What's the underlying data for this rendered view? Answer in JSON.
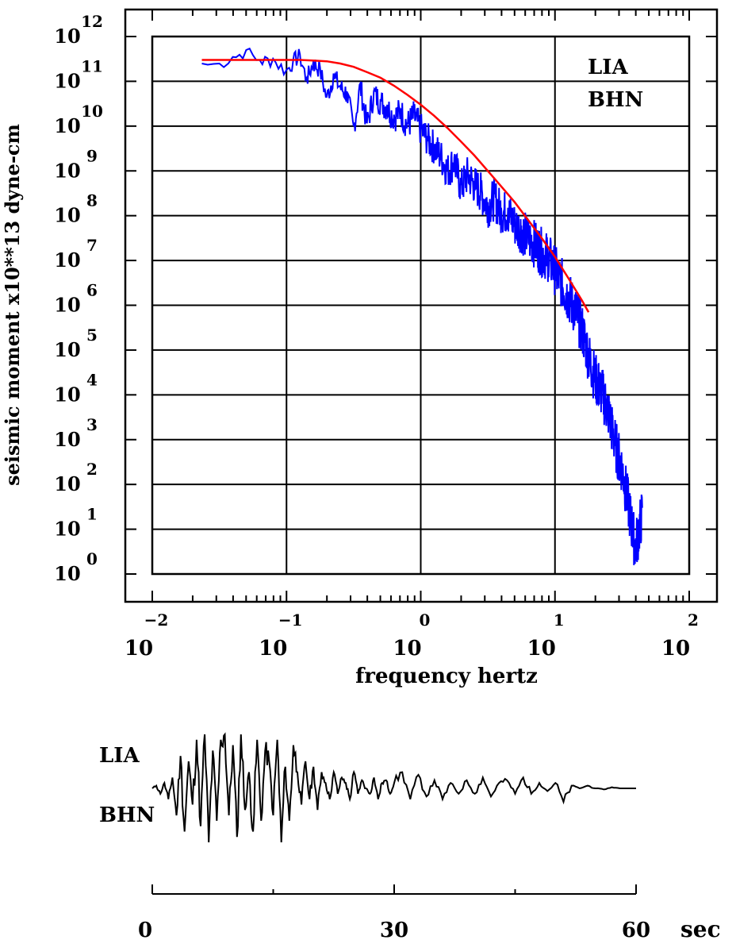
{
  "chart_data": [
    {
      "type": "line",
      "scale": {
        "x": "log",
        "y": "log"
      },
      "xlim": [
        0.01,
        100
      ],
      "ylim": [
        1,
        1000000000000
      ],
      "xlabel": "frequency  hertz",
      "ylabel": "seismic moment x10**13 dyne-cm",
      "x_ticks": [
        {
          "base": "10",
          "exp": "−2"
        },
        {
          "base": "10",
          "exp": "−1"
        },
        {
          "base": "10",
          "exp": "0"
        },
        {
          "base": "10",
          "exp": "1"
        },
        {
          "base": "10",
          "exp": "2"
        }
      ],
      "y_ticks": [
        {
          "base": "10",
          "exp": "0"
        },
        {
          "base": "10",
          "exp": "1"
        },
        {
          "base": "10",
          "exp": "2"
        },
        {
          "base": "10",
          "exp": "3"
        },
        {
          "base": "10",
          "exp": "4"
        },
        {
          "base": "10",
          "exp": "5"
        },
        {
          "base": "10",
          "exp": "6"
        },
        {
          "base": "10",
          "exp": "7"
        },
        {
          "base": "10",
          "exp": "8"
        },
        {
          "base": "10",
          "exp": "9"
        },
        {
          "base": "10",
          "exp": "10"
        },
        {
          "base": "10",
          "exp": "11"
        },
        {
          "base": "10",
          "exp": "12"
        }
      ],
      "grid": true,
      "annotations": [
        "LIA",
        "BHN"
      ],
      "series": [
        {
          "color": "#0000ff",
          "x": [
            0.0234,
            0.0316,
            0.0398,
            0.0501,
            0.0631,
            0.0794,
            0.1,
            0.1122,
            0.1259,
            0.1413,
            0.1585,
            0.1778,
            0.1995,
            0.2239,
            0.2512,
            0.2818,
            0.3162,
            0.3548,
            0.3981,
            0.4467,
            0.5012,
            0.5623,
            0.631,
            0.7079,
            0.7943,
            0.8913,
            1.0,
            1.122,
            1.259,
            1.413,
            1.585,
            1.778,
            1.995,
            2.239,
            2.512,
            2.818,
            3.162,
            3.548,
            3.981,
            4.467,
            5.012,
            5.623,
            6.31,
            7.079,
            7.943,
            8.913,
            10.0,
            11.22,
            12.59,
            14.13,
            15.85,
            17.78,
            19.95,
            22.39,
            25.12,
            28.18,
            31.62,
            35.48,
            39.81,
            44.67
          ],
          "y": [
            250000000000.0,
            250000000000.0,
            350000000000.0,
            500000000000.0,
            300000000000.0,
            320000000000.0,
            180000000000.0,
            300000000000.0,
            400000000000.0,
            120000000000.0,
            280000000000.0,
            200000000000.0,
            45000000000.0,
            150000000000.0,
            80000000000.0,
            60000000000.0,
            10000000000.0,
            90000000000.0,
            12000000000.0,
            60000000000.0,
            40000000000.0,
            30000000000.0,
            18000000000.0,
            25000000000.0,
            12000000000.0,
            20000000000.0,
            10000000000.0,
            6000000000.0,
            4000000000.0,
            2500000000.0,
            1200000000.0,
            2000000000.0,
            500000000.0,
            1000000000.0,
            600000000.0,
            400000000.0,
            200000000.0,
            300000000.0,
            150000000.0,
            150000000.0,
            80000000.0,
            60000000.0,
            40000000.0,
            30000000.0,
            20000000.0,
            15000000.0,
            8000000.0,
            4000000.0,
            2000000.0,
            1000000.0,
            400000.0,
            100000.0,
            30000.0,
            15000.0,
            5000.0,
            1000.0,
            300.0,
            40,
            5,
            30
          ]
        },
        {
          "color": "#ff0000",
          "x": [
            0.0234,
            0.0316,
            0.0501,
            0.0794,
            0.1259,
            0.1585,
            0.1995,
            0.2512,
            0.3162,
            0.3981,
            0.5012,
            0.631,
            0.7943,
            1.0,
            1.259,
            1.585,
            1.995,
            2.512,
            3.162,
            3.981,
            5.012,
            6.31,
            7.943,
            10.0,
            12.59,
            15.85,
            17.78
          ],
          "y": [
            300000000000.0,
            300000000000.0,
            300000000000.0,
            300000000000.0,
            300000000000.0,
            290000000000.0,
            280000000000.0,
            250000000000.0,
            210000000000.0,
            160000000000.0,
            120000000000.0,
            80000000000.0,
            50000000000.0,
            30000000000.0,
            17000000000.0,
            9000000000.0,
            4500000000.0,
            2200000000.0,
            1000000000.0,
            450000000.0,
            200000000.0,
            80000000.0,
            32000000.0,
            12000000.0,
            4000000.0,
            1300000.0,
            700000.0
          ]
        }
      ]
    },
    {
      "type": "line",
      "xlim": [
        0,
        60
      ],
      "x_ticks": [
        "0",
        "30",
        "60"
      ],
      "x_unit": "sec",
      "labels": [
        "LIA",
        "BHN"
      ],
      "series": [
        {
          "color": "#000000",
          "x": [
            0,
            0.5,
            1,
            1.5,
            2,
            2.5,
            3,
            3.5,
            4,
            4.5,
            5,
            5.5,
            6,
            6.5,
            7,
            7.5,
            8,
            8.5,
            9,
            9.5,
            10,
            10.5,
            11,
            11.5,
            12,
            12.5,
            13,
            13.5,
            14,
            14.5,
            15,
            15.5,
            16,
            16.5,
            17,
            17.5,
            18,
            18.5,
            19,
            19.5,
            20,
            20.5,
            21,
            21.5,
            22,
            22.5,
            23,
            23.5,
            24,
            24.5,
            25,
            25.5,
            26,
            26.5,
            27,
            27.5,
            28,
            28.5,
            29,
            29.5,
            30,
            31,
            32,
            33,
            34,
            35,
            36,
            37,
            38,
            39,
            40,
            41,
            42,
            43,
            44,
            45,
            46,
            47,
            48,
            49,
            50,
            51,
            52,
            53,
            54,
            55,
            56,
            57,
            58,
            59,
            60
          ],
          "y": [
            0,
            0.05,
            -0.1,
            0.1,
            -0.2,
            0.2,
            -0.5,
            0.6,
            -0.8,
            0.5,
            -0.3,
            0.9,
            -0.7,
            1.0,
            -1.0,
            0.7,
            -0.6,
            0.9,
            1.0,
            -0.5,
            0.8,
            -0.9,
            1.0,
            -0.4,
            0.3,
            -0.8,
            0.9,
            -0.6,
            0.7,
            0.5,
            -0.5,
            0.9,
            -1.0,
            0.4,
            -0.6,
            0.8,
            0.3,
            -0.3,
            0.5,
            -0.2,
            0.4,
            -0.4,
            0.3,
            0.1,
            -0.2,
            0.3,
            -0.1,
            0.2,
            0.1,
            -0.2,
            0.3,
            -0.1,
            0.15,
            0.0,
            -0.1,
            0.2,
            -0.2,
            0.1,
            0.15,
            -0.1,
            0.1,
            0.3,
            -0.2,
            0.25,
            -0.15,
            0.15,
            -0.2,
            0.1,
            -0.1,
            0.15,
            -0.1,
            0.2,
            -0.15,
            0.1,
            0.15,
            -0.1,
            0.2,
            -0.1,
            0.1,
            -0.05,
            0.1,
            -0.25,
            0.05,
            0.0,
            0.05,
            0.0,
            -0.02,
            0.02,
            0.0,
            0.0,
            0.0
          ]
        }
      ]
    }
  ]
}
